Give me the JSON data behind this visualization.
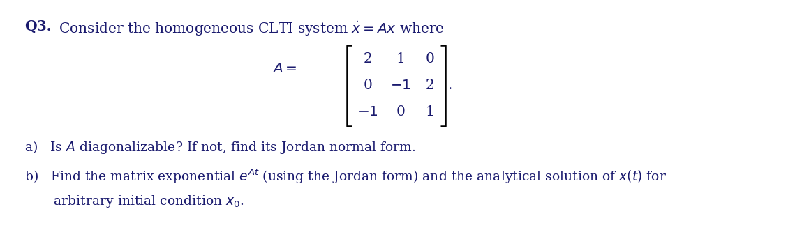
{
  "background_color": "#ffffff",
  "title_bold": "Q3.",
  "title_rest": " Consider the homogeneous CLTI system $\\dot{x} = Ax$ where",
  "matrix_label": "$A = $",
  "matrix_rows": [
    [
      "2",
      "1",
      "0"
    ],
    [
      "0",
      "$-1$",
      "2"
    ],
    [
      "$-1$",
      "0",
      "1"
    ]
  ],
  "period": ".",
  "item_a": "a)   Is $A$ diagonalizable? If not, find its Jordan normal form.",
  "item_b_line1": "b)   Find the matrix exponential $e^{At}$ (using the Jordan form) and the analytical solution of $x(t)$ for",
  "item_b_line2": "       arbitrary initial condition $x_0$.",
  "font_size_title": 14.5,
  "font_size_body": 13.5,
  "font_size_matrix": 14.5,
  "text_color": "#1a1a6e"
}
